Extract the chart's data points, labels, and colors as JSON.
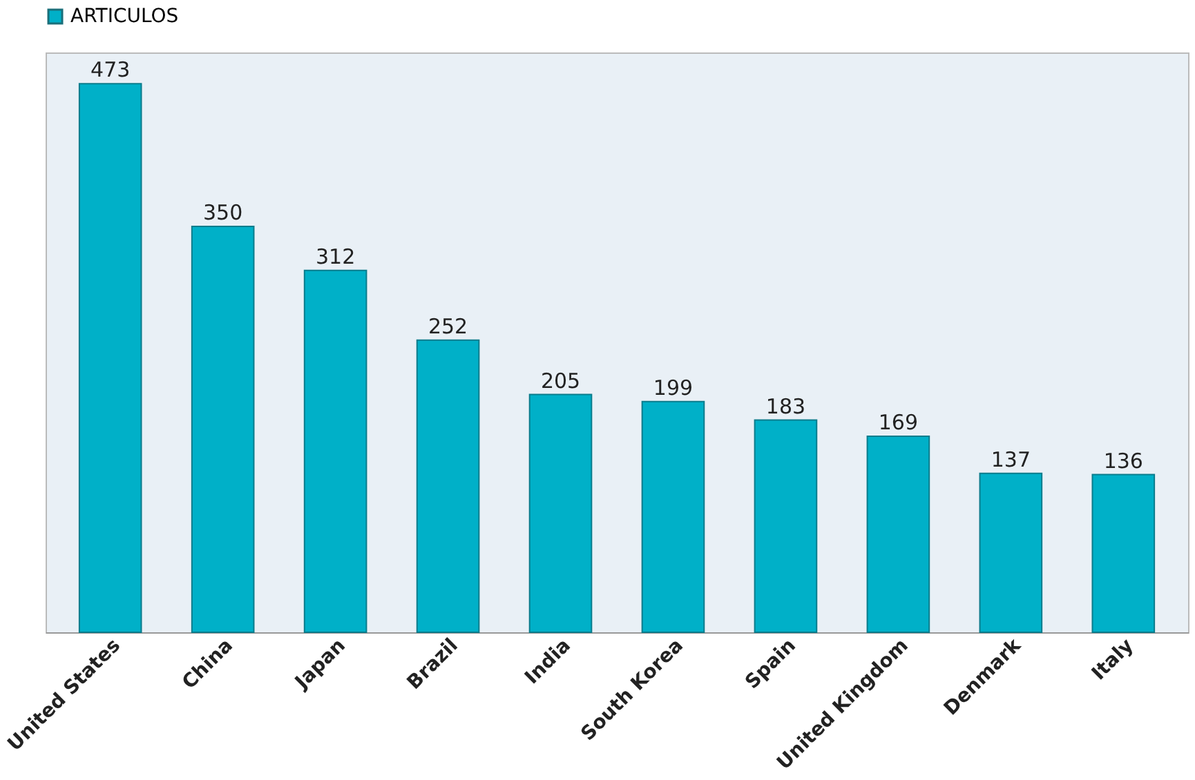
{
  "chart_data": {
    "type": "bar",
    "categories": [
      "United States",
      "China",
      "Japan",
      "Brazil",
      "India",
      "South Korea",
      "Spain",
      "United Kingdom",
      "Denmark",
      "Italy"
    ],
    "series": [
      {
        "name": "ARTICULOS",
        "color": "#00b0c8",
        "values": [
          473,
          350,
          312,
          252,
          205,
          199,
          183,
          169,
          137,
          136
        ]
      }
    ],
    "ylim": [
      0,
      500
    ],
    "data_labels": true,
    "legend": "top",
    "grid": false,
    "tick_labels": "x"
  }
}
